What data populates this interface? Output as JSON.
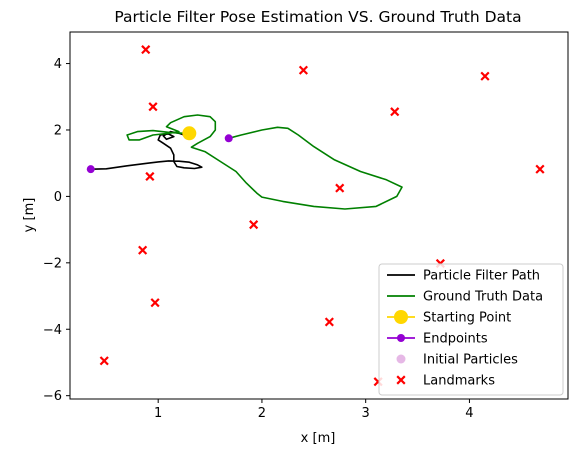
{
  "chart_data": {
    "type": "line",
    "title": "Particle Filter Pose Estimation VS. Ground Truth Data",
    "xlabel": "x [m]",
    "ylabel": "y [m]",
    "xlim": [
      0.15,
      4.95
    ],
    "ylim": [
      -6.1,
      4.95
    ],
    "xticks": [
      1,
      2,
      3,
      4
    ],
    "yticks": [
      -6,
      -4,
      -2,
      0,
      2,
      4
    ],
    "grid": false,
    "legend_position": "lower right",
    "series": [
      {
        "name": "Particle Filter Path",
        "kind": "line",
        "color": "#000000",
        "points": [
          [
            0.35,
            0.82
          ],
          [
            0.5,
            0.83
          ],
          [
            0.7,
            0.92
          ],
          [
            0.9,
            1.0
          ],
          [
            1.0,
            1.04
          ],
          [
            1.1,
            1.07
          ],
          [
            1.2,
            1.06
          ],
          [
            1.3,
            1.03
          ],
          [
            1.38,
            0.95
          ],
          [
            1.42,
            0.88
          ],
          [
            1.35,
            0.84
          ],
          [
            1.25,
            0.86
          ],
          [
            1.18,
            0.9
          ],
          [
            1.15,
            1.05
          ],
          [
            1.15,
            1.25
          ],
          [
            1.12,
            1.45
          ],
          [
            1.05,
            1.6
          ],
          [
            1.0,
            1.7
          ],
          [
            1.02,
            1.85
          ],
          [
            1.1,
            1.88
          ],
          [
            1.15,
            1.8
          ],
          [
            1.08,
            1.72
          ],
          [
            1.05,
            1.82
          ],
          [
            1.12,
            1.95
          ],
          [
            1.2,
            1.9
          ],
          [
            1.25,
            1.85
          ]
        ]
      },
      {
        "name": "Ground Truth Data",
        "kind": "line",
        "color": "#008000",
        "points": [
          [
            1.68,
            1.75
          ],
          [
            1.8,
            1.85
          ],
          [
            2.0,
            2.0
          ],
          [
            2.15,
            2.08
          ],
          [
            2.25,
            2.05
          ],
          [
            2.35,
            1.85
          ],
          [
            2.5,
            1.5
          ],
          [
            2.7,
            1.1
          ],
          [
            2.95,
            0.75
          ],
          [
            3.2,
            0.5
          ],
          [
            3.35,
            0.28
          ],
          [
            3.3,
            0.0
          ],
          [
            3.1,
            -0.3
          ],
          [
            2.8,
            -0.38
          ],
          [
            2.5,
            -0.3
          ],
          [
            2.2,
            -0.15
          ],
          [
            2.0,
            -0.02
          ],
          [
            1.95,
            0.1
          ],
          [
            1.85,
            0.4
          ],
          [
            1.75,
            0.75
          ],
          [
            1.6,
            1.05
          ],
          [
            1.45,
            1.35
          ],
          [
            1.32,
            1.48
          ],
          [
            1.38,
            1.6
          ],
          [
            1.5,
            1.8
          ],
          [
            1.55,
            2.0
          ],
          [
            1.55,
            2.25
          ],
          [
            1.5,
            2.4
          ],
          [
            1.38,
            2.45
          ],
          [
            1.25,
            2.4
          ],
          [
            1.12,
            2.22
          ],
          [
            1.08,
            2.1
          ],
          [
            1.2,
            1.95
          ],
          [
            1.1,
            1.9
          ],
          [
            0.95,
            1.85
          ],
          [
            0.82,
            1.7
          ],
          [
            0.72,
            1.7
          ],
          [
            0.7,
            1.85
          ],
          [
            0.8,
            1.95
          ],
          [
            0.95,
            1.98
          ],
          [
            1.12,
            1.92
          ],
          [
            1.25,
            1.9
          ]
        ]
      },
      {
        "name": "Starting Point",
        "kind": "marker",
        "color": "#FFD700",
        "points": [
          [
            1.3,
            1.9
          ]
        ]
      },
      {
        "name": "Endpoints",
        "kind": "marker",
        "color": "#9400D3",
        "points": [
          [
            0.35,
            0.82
          ],
          [
            1.68,
            1.75
          ]
        ]
      },
      {
        "name": " Initial Particles",
        "kind": "marker",
        "color": "#DDA0DD",
        "points": []
      },
      {
        "name": "Landmarks",
        "kind": "cross",
        "color": "#FF0000",
        "points": [
          [
            0.88,
            4.42
          ],
          [
            0.95,
            2.7
          ],
          [
            0.92,
            0.6
          ],
          [
            0.85,
            -1.62
          ],
          [
            0.97,
            -3.2
          ],
          [
            0.48,
            -4.95
          ],
          [
            1.92,
            -0.85
          ],
          [
            2.4,
            3.8
          ],
          [
            2.75,
            0.25
          ],
          [
            2.65,
            -3.78
          ],
          [
            3.28,
            2.55
          ],
          [
            3.12,
            -5.58
          ],
          [
            3.72,
            -2.02
          ],
          [
            4.15,
            3.62
          ],
          [
            4.68,
            0.82
          ]
        ]
      }
    ]
  }
}
